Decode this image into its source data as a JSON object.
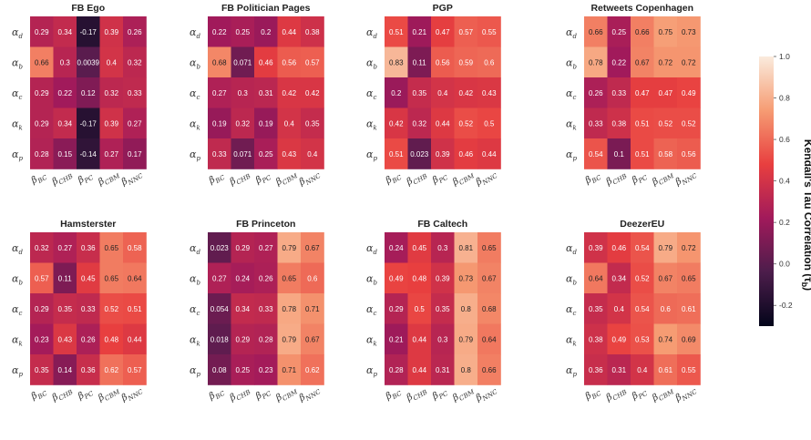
{
  "chart_data": {
    "type": "heatmap",
    "rows": [
      {
        "symbol": "α",
        "sub": "d"
      },
      {
        "symbol": "α",
        "sub": "b"
      },
      {
        "symbol": "α",
        "sub": "c"
      },
      {
        "symbol": "α",
        "sub": "k"
      },
      {
        "symbol": "α",
        "sub": "p"
      }
    ],
    "columns": [
      {
        "symbol": "β",
        "sub": "BC"
      },
      {
        "symbol": "β",
        "sub": "CHB"
      },
      {
        "symbol": "β",
        "sub": "PC"
      },
      {
        "symbol": "β",
        "sub": "CBM"
      },
      {
        "symbol": "β",
        "sub": "NNC"
      }
    ],
    "panels": [
      {
        "title": "FB Ego",
        "values": [
          [
            0.29,
            0.34,
            -0.17,
            0.39,
            0.26
          ],
          [
            0.66,
            0.3,
            0.0039,
            0.4,
            0.32
          ],
          [
            0.29,
            0.22,
            0.12,
            0.32,
            0.33
          ],
          [
            0.29,
            0.34,
            -0.17,
            0.39,
            0.27
          ],
          [
            0.28,
            0.15,
            -0.14,
            0.27,
            0.17
          ]
        ],
        "labels": [
          [
            "0.29",
            "0.34",
            "-0.17",
            "0.39",
            "0.26"
          ],
          [
            "0.66",
            "0.3",
            "0.0039",
            "0.4",
            "0.32"
          ],
          [
            "0.29",
            "0.22",
            "0.12",
            "0.32",
            "0.33"
          ],
          [
            "0.29",
            "0.34",
            "-0.17",
            "0.39",
            "0.27"
          ],
          [
            "0.28",
            "0.15",
            "-0.14",
            "0.27",
            "0.17"
          ]
        ]
      },
      {
        "title": "FB Politician Pages",
        "values": [
          [
            0.22,
            0.25,
            0.2,
            0.44,
            0.38
          ],
          [
            0.68,
            0.071,
            0.46,
            0.56,
            0.57
          ],
          [
            0.27,
            0.3,
            0.31,
            0.42,
            0.42
          ],
          [
            0.19,
            0.32,
            0.19,
            0.4,
            0.35
          ],
          [
            0.33,
            0.071,
            0.25,
            0.43,
            0.4
          ]
        ],
        "labels": [
          [
            "0.22",
            "0.25",
            "0.2",
            "0.44",
            "0.38"
          ],
          [
            "0.68",
            "0.071",
            "0.46",
            "0.56",
            "0.57"
          ],
          [
            "0.27",
            "0.3",
            "0.31",
            "0.42",
            "0.42"
          ],
          [
            "0.19",
            "0.32",
            "0.19",
            "0.4",
            "0.35"
          ],
          [
            "0.33",
            "0.071",
            "0.25",
            "0.43",
            "0.4"
          ]
        ]
      },
      {
        "title": "PGP",
        "values": [
          [
            0.51,
            0.21,
            0.47,
            0.57,
            0.55
          ],
          [
            0.83,
            0.11,
            0.56,
            0.59,
            0.6
          ],
          [
            0.2,
            0.35,
            0.4,
            0.42,
            0.43
          ],
          [
            0.42,
            0.32,
            0.44,
            0.52,
            0.5
          ],
          [
            0.51,
            0.023,
            0.39,
            0.46,
            0.44
          ]
        ],
        "labels": [
          [
            "0.51",
            "0.21",
            "0.47",
            "0.57",
            "0.55"
          ],
          [
            "0.83",
            "0.11",
            "0.56",
            "0.59",
            "0.6"
          ],
          [
            "0.2",
            "0.35",
            "0.4",
            "0.42",
            "0.43"
          ],
          [
            "0.42",
            "0.32",
            "0.44",
            "0.52",
            "0.5"
          ],
          [
            "0.51",
            "0.023",
            "0.39",
            "0.46",
            "0.44"
          ]
        ]
      },
      {
        "title": "Retweets Copenhagen",
        "values": [
          [
            0.66,
            0.25,
            0.66,
            0.75,
            0.73
          ],
          [
            0.78,
            0.22,
            0.67,
            0.72,
            0.72
          ],
          [
            0.26,
            0.33,
            0.47,
            0.47,
            0.49
          ],
          [
            0.33,
            0.38,
            0.51,
            0.52,
            0.52
          ],
          [
            0.54,
            0.1,
            0.51,
            0.58,
            0.56
          ]
        ],
        "labels": [
          [
            "0.66",
            "0.25",
            "0.66",
            "0.75",
            "0.73"
          ],
          [
            "0.78",
            "0.22",
            "0.67",
            "0.72",
            "0.72"
          ],
          [
            "0.26",
            "0.33",
            "0.47",
            "0.47",
            "0.49"
          ],
          [
            "0.33",
            "0.38",
            "0.51",
            "0.52",
            "0.52"
          ],
          [
            "0.54",
            "0.1",
            "0.51",
            "0.58",
            "0.56"
          ]
        ]
      },
      {
        "title": "Hamsterster",
        "values": [
          [
            0.32,
            0.27,
            0.36,
            0.65,
            0.58
          ],
          [
            0.57,
            0.11,
            0.45,
            0.65,
            0.64
          ],
          [
            0.29,
            0.35,
            0.33,
            0.52,
            0.51
          ],
          [
            0.23,
            0.43,
            0.26,
            0.48,
            0.44
          ],
          [
            0.35,
            0.14,
            0.36,
            0.62,
            0.57
          ]
        ],
        "labels": [
          [
            "0.32",
            "0.27",
            "0.36",
            "0.65",
            "0.58"
          ],
          [
            "0.57",
            "0.11",
            "0.45",
            "0.65",
            "0.64"
          ],
          [
            "0.29",
            "0.35",
            "0.33",
            "0.52",
            "0.51"
          ],
          [
            "0.23",
            "0.43",
            "0.26",
            "0.48",
            "0.44"
          ],
          [
            "0.35",
            "0.14",
            "0.36",
            "0.62",
            "0.57"
          ]
        ]
      },
      {
        "title": "FB Princeton",
        "values": [
          [
            0.023,
            0.29,
            0.27,
            0.79,
            0.67
          ],
          [
            0.27,
            0.24,
            0.26,
            0.65,
            0.6
          ],
          [
            0.054,
            0.34,
            0.33,
            0.78,
            0.71
          ],
          [
            0.018,
            0.29,
            0.28,
            0.79,
            0.67
          ],
          [
            0.08,
            0.25,
            0.23,
            0.71,
            0.62
          ]
        ],
        "labels": [
          [
            "0.023",
            "0.29",
            "0.27",
            "0.79",
            "0.67"
          ],
          [
            "0.27",
            "0.24",
            "0.26",
            "0.65",
            "0.6"
          ],
          [
            "0.054",
            "0.34",
            "0.33",
            "0.78",
            "0.71"
          ],
          [
            "0.018",
            "0.29",
            "0.28",
            "0.79",
            "0.67"
          ],
          [
            "0.08",
            "0.25",
            "0.23",
            "0.71",
            "0.62"
          ]
        ]
      },
      {
        "title": "FB Caltech",
        "values": [
          [
            0.24,
            0.45,
            0.3,
            0.81,
            0.65
          ],
          [
            0.49,
            0.48,
            0.39,
            0.73,
            0.67
          ],
          [
            0.29,
            0.5,
            0.35,
            0.8,
            0.68
          ],
          [
            0.21,
            0.44,
            0.3,
            0.79,
            0.64
          ],
          [
            0.28,
            0.44,
            0.31,
            0.8,
            0.66
          ]
        ],
        "labels": [
          [
            "0.24",
            "0.45",
            "0.3",
            "0.81",
            "0.65"
          ],
          [
            "0.49",
            "0.48",
            "0.39",
            "0.73",
            "0.67"
          ],
          [
            "0.29",
            "0.5",
            "0.35",
            "0.8",
            "0.68"
          ],
          [
            "0.21",
            "0.44",
            "0.3",
            "0.79",
            "0.64"
          ],
          [
            "0.28",
            "0.44",
            "0.31",
            "0.8",
            "0.66"
          ]
        ]
      },
      {
        "title": "DeezerEU",
        "values": [
          [
            0.39,
            0.46,
            0.54,
            0.79,
            0.72
          ],
          [
            0.64,
            0.34,
            0.52,
            0.67,
            0.65
          ],
          [
            0.35,
            0.4,
            0.54,
            0.6,
            0.61
          ],
          [
            0.38,
            0.49,
            0.53,
            0.74,
            0.69
          ],
          [
            0.36,
            0.31,
            0.4,
            0.61,
            0.55
          ]
        ],
        "labels": [
          [
            "0.39",
            "0.46",
            "0.54",
            "0.79",
            "0.72"
          ],
          [
            "0.64",
            "0.34",
            "0.52",
            "0.67",
            "0.65"
          ],
          [
            "0.35",
            "0.4",
            "0.54",
            "0.6",
            "0.61"
          ],
          [
            "0.38",
            "0.49",
            "0.53",
            "0.74",
            "0.69"
          ],
          [
            "0.36",
            "0.31",
            "0.4",
            "0.61",
            "0.55"
          ]
        ]
      }
    ],
    "colorbar": {
      "label": "Kendall's Tau Correlation (τ",
      "label_sub": "b",
      "label_close": ")",
      "range": [
        -0.3,
        1.0
      ],
      "ticks": [
        "1.0",
        "0.8",
        "0.6",
        "0.4",
        "0.2",
        "0.0",
        "-0.2"
      ],
      "tick_values": [
        1.0,
        0.8,
        0.6,
        0.4,
        0.2,
        0.0,
        -0.2
      ],
      "colormap": "rocket",
      "colormap_stops": [
        "#03051a",
        "#4c1d4b",
        "#a11a5b",
        "#e83f3f",
        "#f69c73",
        "#faebdd"
      ]
    }
  }
}
